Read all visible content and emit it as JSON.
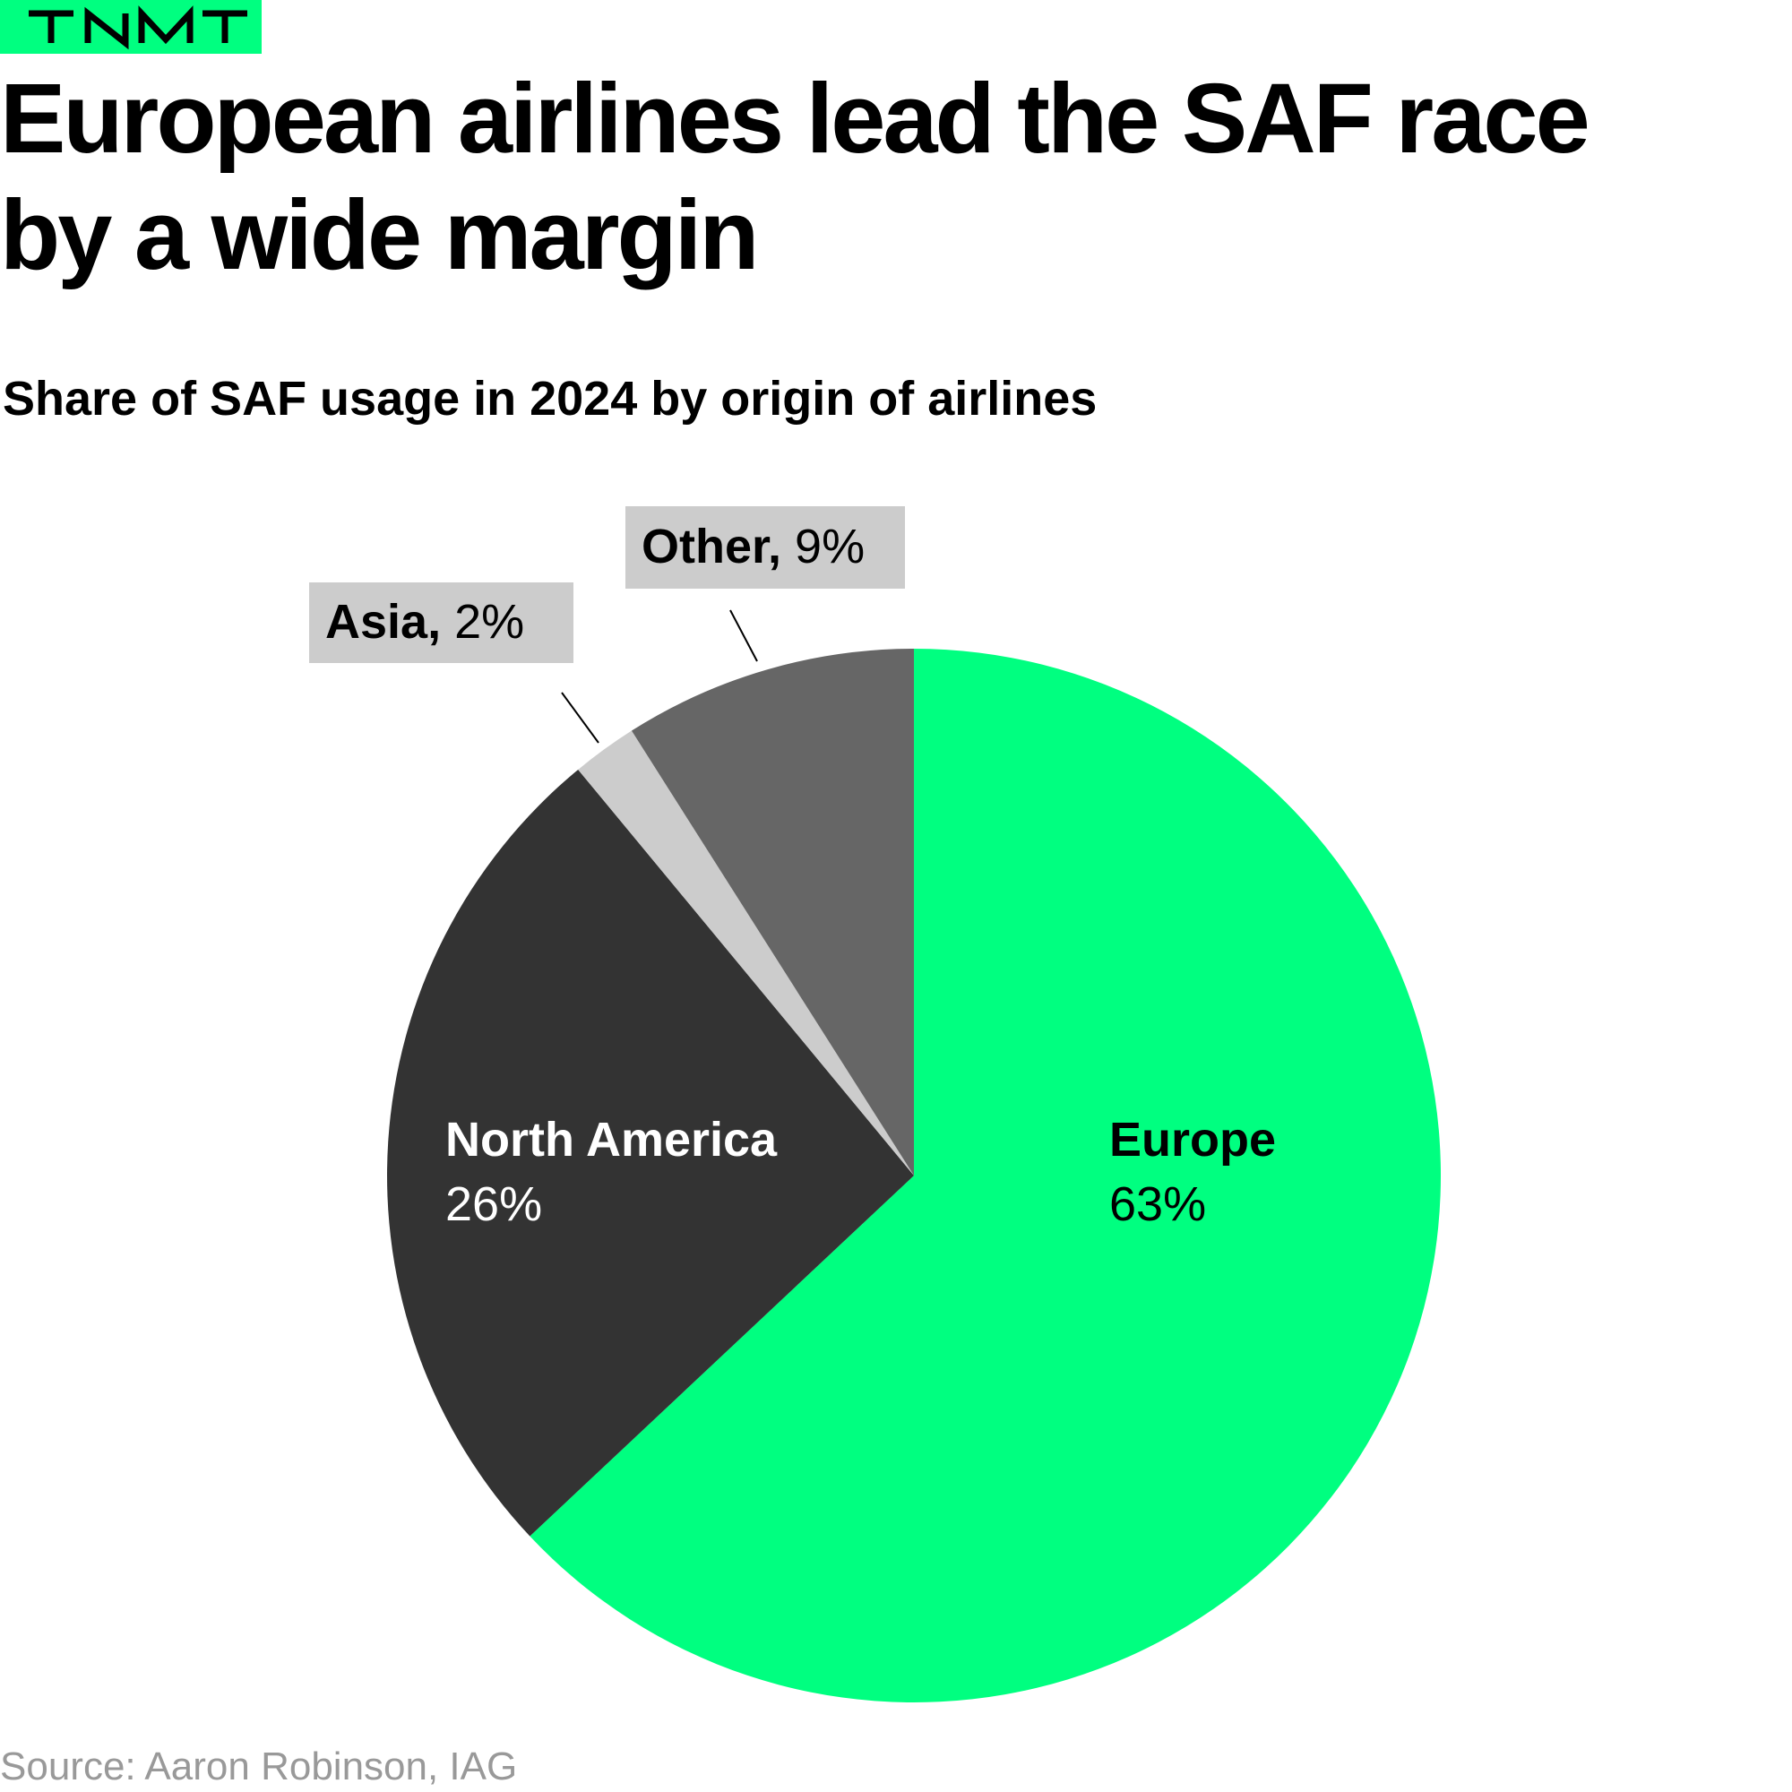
{
  "brand": {
    "logo_text": "TNMT",
    "color": "#00ff80"
  },
  "header": {
    "title": "European airlines lead the SAF race by a wide margin",
    "subtitle": "Share of SAF usage in 2024 by origin of airlines"
  },
  "chart_data": {
    "type": "pie",
    "unit": "%",
    "slices": [
      {
        "label": "Europe",
        "value": 63,
        "display": "63%",
        "color": "#00ff80",
        "label_color": "#000000"
      },
      {
        "label": "North America",
        "value": 26,
        "display": "26%",
        "color": "#333333",
        "label_color": "#ffffff"
      },
      {
        "label": "Asia",
        "value": 2,
        "display": "2%",
        "color": "#cccccc",
        "label_color": "#000000",
        "callout_label": "Asia,",
        "callout_value": " 2%"
      },
      {
        "label": "Other",
        "value": 9,
        "display": "9%",
        "color": "#666666",
        "label_color": "#000000",
        "callout_label": "Other,",
        "callout_value": " 9%"
      }
    ],
    "start_angle": "12 o'clock",
    "direction": "clockwise",
    "legend": "none",
    "callout_box_color": "#cccccc"
  },
  "footer": {
    "source": "Source: Aaron Robinson, IAG"
  }
}
